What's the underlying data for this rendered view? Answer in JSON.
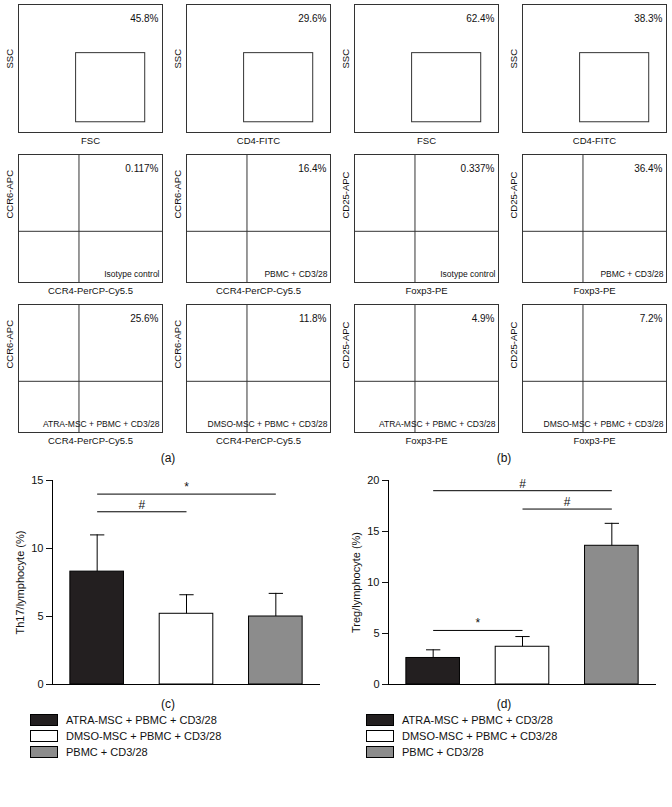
{
  "chart_data": [
    {
      "type": "flow_group",
      "title": "(a)",
      "panels": [
        {
          "type": "flow_gate",
          "xlabel": "FSC",
          "ylabel": "SSC",
          "gate": {
            "value": 45.8,
            "label": "45.8%"
          }
        },
        {
          "type": "flow_gate",
          "xlabel": "CD4-FITC",
          "ylabel": "SSC",
          "gate": {
            "value": 29.6,
            "label": "29.6%"
          }
        },
        {
          "type": "flow_quadrant",
          "xlabel": "CCR4-PerCP-Cy5.5",
          "ylabel": "CCR6-APC",
          "gate": {
            "value": 0.117,
            "label": "0.117%"
          },
          "sample": "Isotype control"
        },
        {
          "type": "flow_quadrant",
          "xlabel": "CCR4-PerCP-Cy5.5",
          "ylabel": "CCR6-APC",
          "gate": {
            "value": 16.4,
            "label": "16.4%"
          },
          "sample": "PBMC + CD3/28"
        },
        {
          "type": "flow_quadrant",
          "xlabel": "CCR4-PerCP-Cy5.5",
          "ylabel": "CCR6-APC",
          "gate": {
            "value": 25.6,
            "label": "25.6%"
          },
          "sample": "ATRA-MSC + PBMC + CD3/28"
        },
        {
          "type": "flow_quadrant",
          "xlabel": "CCR4-PerCP-Cy5.5",
          "ylabel": "CCR6-APC",
          "gate": {
            "value": 11.8,
            "label": "11.8%"
          },
          "sample": "DMSO-MSC + PBMC + CD3/28"
        }
      ]
    },
    {
      "type": "flow_group",
      "title": "(b)",
      "panels": [
        {
          "type": "flow_gate",
          "xlabel": "FSC",
          "ylabel": "SSC",
          "gate": {
            "value": 62.4,
            "label": "62.4%"
          }
        },
        {
          "type": "flow_gate",
          "xlabel": "CD4-FITC",
          "ylabel": "SSC",
          "gate": {
            "value": 38.3,
            "label": "38.3%"
          }
        },
        {
          "type": "flow_quadrant",
          "xlabel": "Foxp3-PE",
          "ylabel": "CD25-APC",
          "gate": {
            "value": 0.337,
            "label": "0.337%"
          },
          "sample": "Isotype control"
        },
        {
          "type": "flow_quadrant",
          "xlabel": "Foxp3-PE",
          "ylabel": "CD25-APC",
          "gate": {
            "value": 36.4,
            "label": "36.4%"
          },
          "sample": "PBMC + CD3/28"
        },
        {
          "type": "flow_quadrant",
          "xlabel": "Foxp3-PE",
          "ylabel": "CD25-APC",
          "gate": {
            "value": 4.9,
            "label": "4.9%"
          },
          "sample": "ATRA-MSC + PBMC + CD3/28"
        },
        {
          "type": "flow_quadrant",
          "xlabel": "Foxp3-PE",
          "ylabel": "CD25-APC",
          "gate": {
            "value": 7.2,
            "label": "7.2%"
          },
          "sample": "DMSO-MSC + PBMC + CD3/28"
        }
      ]
    },
    {
      "type": "bar",
      "title": "(c)",
      "ylabel": "Th17/lymphocyte (%)",
      "categories": [
        "ATRA-MSC + PBMC + CD3/28",
        "DMSO-MSC + PBMC + CD3/28",
        "PBMC + CD3/28"
      ],
      "values": [
        8.3,
        5.2,
        5.0
      ],
      "errors": [
        2.7,
        1.4,
        1.7
      ],
      "colors": [
        "#231f20",
        "#ffffff",
        "#8c8c8c"
      ],
      "ylim": [
        0,
        15
      ],
      "yticks": [
        0,
        5,
        10,
        15
      ],
      "legend": "bottom",
      "comparisons": [
        {
          "from": "ATRA-MSC + PBMC + CD3/28",
          "to": "DMSO-MSC + PBMC + CD3/28",
          "y": 12.7,
          "label": "#"
        },
        {
          "from": "ATRA-MSC + PBMC + CD3/28",
          "to": "PBMC + CD3/28",
          "y": 14.0,
          "label": "*"
        }
      ]
    },
    {
      "type": "bar",
      "title": "(d)",
      "ylabel": "Treg/lymphocyte (%)",
      "categories": [
        "ATRA-MSC + PBMC + CD3/28",
        "DMSO-MSC + PBMC + CD3/28",
        "PBMC + CD3/28"
      ],
      "values": [
        2.6,
        3.7,
        13.6
      ],
      "errors": [
        0.8,
        1.0,
        2.2
      ],
      "colors": [
        "#231f20",
        "#ffffff",
        "#8c8c8c"
      ],
      "ylim": [
        0,
        20
      ],
      "yticks": [
        0,
        5,
        10,
        15,
        20
      ],
      "legend": "bottom",
      "comparisons": [
        {
          "from": "ATRA-MSC + PBMC + CD3/28",
          "to": "PBMC + CD3/28",
          "y": 19.0,
          "label": "#"
        },
        {
          "from": "DMSO-MSC + PBMC + CD3/28",
          "to": "PBMC + CD3/28",
          "y": 17.2,
          "label": "#"
        },
        {
          "from": "ATRA-MSC + PBMC + CD3/28",
          "to": "DMSO-MSC + PBMC + CD3/28",
          "y": 5.3,
          "label": "*"
        }
      ]
    }
  ]
}
